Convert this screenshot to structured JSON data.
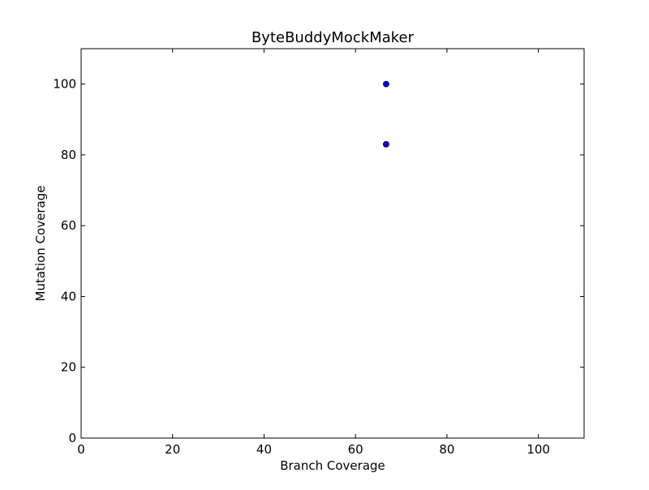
{
  "chart_data": {
    "type": "scatter",
    "title": "ByteBuddyMockMaker",
    "xlabel": "Branch Coverage",
    "ylabel": "Mutation Coverage",
    "xlim": [
      0,
      110
    ],
    "ylim": [
      0,
      110
    ],
    "xticks": [
      0,
      20,
      40,
      60,
      80,
      100
    ],
    "yticks": [
      0,
      20,
      40,
      60,
      80,
      100
    ],
    "xtick_labels": [
      "0",
      "20",
      "40",
      "60",
      "80",
      "100"
    ],
    "ytick_labels": [
      "0",
      "20",
      "40",
      "60",
      "80",
      "100"
    ],
    "grid": false,
    "series": [
      {
        "color": "#0000ff",
        "points": [
          {
            "x": 66.7,
            "y": 100
          },
          {
            "x": 66.7,
            "y": 83
          }
        ]
      }
    ]
  }
}
